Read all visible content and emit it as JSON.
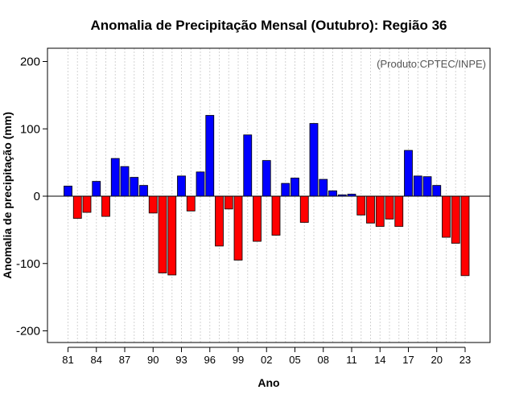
{
  "chart_data": {
    "type": "bar",
    "title": "Anomalia de Precipitação Mensal (Outubro): Região 36",
    "xlabel": "Ano",
    "ylabel": "Anomalia de precipitação (mm)",
    "credit": "(Produto:CPTEC/INPE)",
    "ylim": [
      -200,
      200
    ],
    "yticks": [
      -200,
      -100,
      0,
      100,
      200
    ],
    "xtick_labels": [
      "81",
      "84",
      "87",
      "90",
      "93",
      "96",
      "99",
      "02",
      "05",
      "08",
      "11",
      "14",
      "17",
      "20",
      "23"
    ],
    "grid": true,
    "positive_color": "#0000ff",
    "negative_color": "#ff0000",
    "years": [
      1981,
      1982,
      1983,
      1984,
      1985,
      1986,
      1987,
      1988,
      1989,
      1990,
      1991,
      1992,
      1993,
      1994,
      1995,
      1996,
      1997,
      1998,
      1999,
      2000,
      2001,
      2002,
      2003,
      2004,
      2005,
      2006,
      2007,
      2008,
      2009,
      2010,
      2011,
      2012,
      2013,
      2014,
      2015,
      2016,
      2017,
      2018,
      2019,
      2020,
      2021,
      2022,
      2023
    ],
    "values": [
      15,
      -33,
      -24,
      22,
      -30,
      56,
      44,
      28,
      16,
      -25,
      -114,
      -117,
      30,
      -22,
      36,
      120,
      -74,
      -19,
      -95,
      91,
      -67,
      53,
      -58,
      19,
      27,
      -39,
      108,
      25,
      8,
      2,
      3,
      -28,
      -40,
      -45,
      -34,
      -45,
      68,
      30,
      29,
      16,
      -61,
      -70,
      -118
    ]
  }
}
